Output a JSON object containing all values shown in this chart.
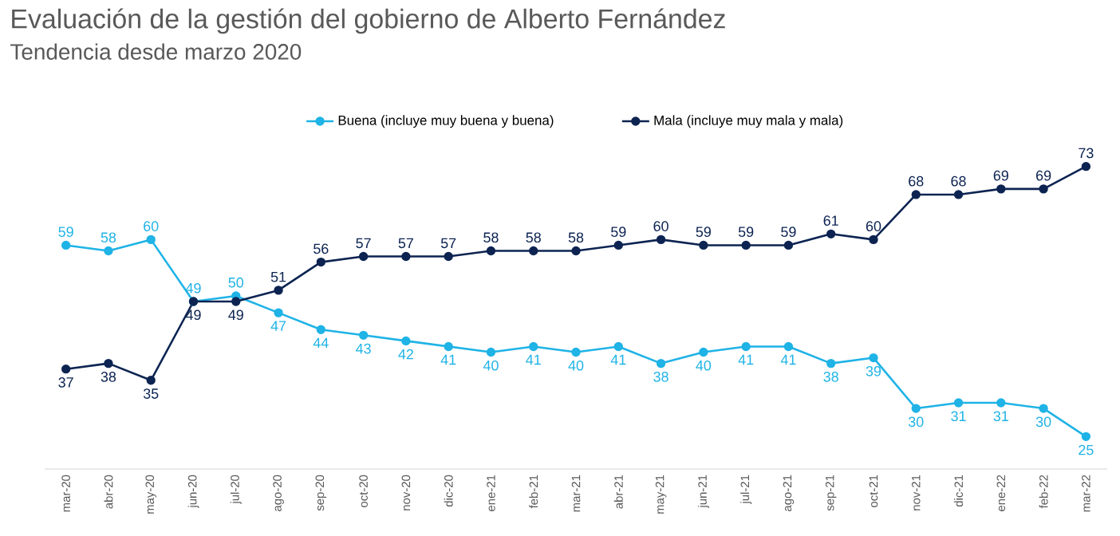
{
  "chart_data": {
    "type": "line",
    "title": "Evaluación de la gestión del gobierno de Alberto Fernández",
    "subtitle": "Tendencia desde marzo 2020",
    "categories": [
      "mar-20",
      "abr-20",
      "may-20",
      "jun-20",
      "jul-20",
      "ago-20",
      "sep-20",
      "oct-20",
      "nov-20",
      "dic-20",
      "ene-21",
      "feb-21",
      "mar-21",
      "abr-21",
      "may-21",
      "jun-21",
      "jul-21",
      "ago-21",
      "sep-21",
      "oct-21",
      "nov-21",
      "dic-21",
      "ene-22",
      "feb-22",
      "mar-22"
    ],
    "series": [
      {
        "name": "Buena (incluye muy buena y buena)",
        "color": "#1fb3e6",
        "values": [
          59,
          58,
          60,
          49,
          50,
          47,
          44,
          43,
          42,
          41,
          40,
          41,
          40,
          41,
          38,
          40,
          41,
          41,
          38,
          39,
          30,
          31,
          31,
          30,
          25
        ]
      },
      {
        "name": "Mala (incluye muy mala y mala)",
        "color": "#0d2452",
        "values": [
          37,
          38,
          35,
          49,
          49,
          51,
          56,
          57,
          57,
          57,
          58,
          58,
          58,
          59,
          60,
          59,
          59,
          59,
          61,
          60,
          68,
          68,
          69,
          69,
          73
        ]
      }
    ],
    "data_labels": true,
    "legend": "top",
    "marker": "circle",
    "grid": false
  }
}
